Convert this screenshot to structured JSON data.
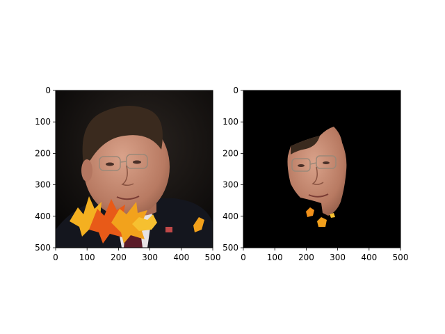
{
  "chart_data": [
    {
      "type": "image",
      "description_ticks": true,
      "xlim": [
        0,
        500
      ],
      "ylim": [
        500,
        0
      ],
      "xticks": [
        0,
        100,
        200,
        300,
        400,
        500
      ],
      "yticks": [
        0,
        100,
        200,
        300,
        400,
        500
      ],
      "xtick_labels": [
        "0",
        "100",
        "200",
        "300",
        "400",
        "500"
      ],
      "ytick_labels": [
        "0",
        "100",
        "200",
        "300",
        "400",
        "500"
      ],
      "content": "photo of man in suit and tie with autumn leaves overlay at lower left"
    },
    {
      "type": "image",
      "xlim": [
        0,
        500
      ],
      "ylim": [
        500,
        0
      ],
      "xticks": [
        0,
        100,
        200,
        300,
        400,
        500
      ],
      "yticks": [
        0,
        100,
        200,
        300,
        400,
        500
      ],
      "xtick_labels": [
        "0",
        "100",
        "200",
        "300",
        "400",
        "500"
      ],
      "ytick_labels": [
        "0",
        "100",
        "200",
        "300",
        "400",
        "500"
      ],
      "content": "segmented face region on black background with small leaf fragments"
    }
  ],
  "colors": {
    "background": "#ffffff",
    "mask_background": "#000000",
    "photo_background": "#0b0a08",
    "skin": "#c99078",
    "hair": "#3a2a1e",
    "suit": "#14161e",
    "shirt": "#e8e4e6",
    "tie": "#5a1a28",
    "leaf_orange": "#f08a1a",
    "leaf_yellow": "#f6b820",
    "leaf_red": "#d8481a"
  }
}
